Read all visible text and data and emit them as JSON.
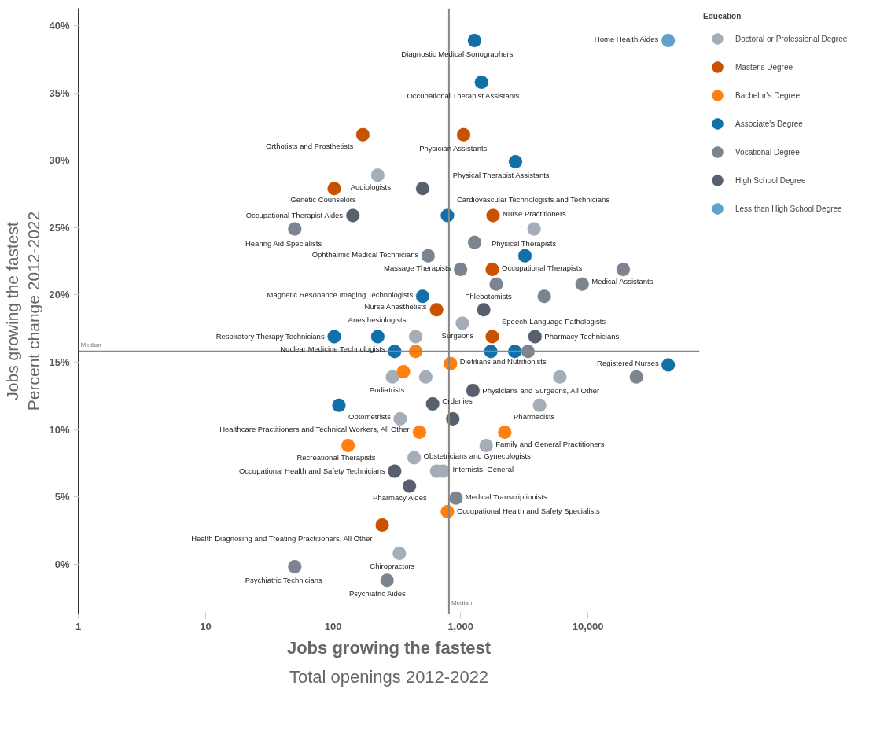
{
  "chart_data": {
    "type": "scatter",
    "xlabel": "Jobs growing the fastest\nTotal openings 2012-2022",
    "ylabel": "Jobs growing the fastest\nPercent change 2012-2022",
    "legend_title": "Education",
    "legend": "top right",
    "log": "x",
    "marker": "circle",
    "grid": false,
    "xlim": [
      1,
      75000
    ],
    "ylim": [
      -3.7,
      41.3
    ],
    "xticks": [
      1,
      10,
      100,
      {
        "value": 1000,
        "label": "1,000"
      },
      {
        "value": 10000,
        "label": "10,000"
      }
    ],
    "yticks": [
      {
        "value": 0,
        "label": "0%"
      },
      {
        "value": 5,
        "label": "5%"
      },
      {
        "value": 10,
        "label": "10%"
      },
      {
        "value": 15,
        "label": "15%"
      },
      {
        "value": 20,
        "label": "20%"
      },
      {
        "value": 25,
        "label": "25%"
      },
      {
        "value": 30,
        "label": "30%"
      },
      {
        "value": 35,
        "label": "35%"
      },
      {
        "value": 40,
        "label": "40%"
      }
    ],
    "ref_lines": [
      {
        "axis": "y",
        "value": 15.8,
        "label": "Median",
        "color": "#888888"
      },
      {
        "axis": "x",
        "value": 811,
        "label": "Median",
        "color": "#888888"
      }
    ],
    "series": [
      {
        "name": "Doctoral or Professional Degree",
        "color": "#a5adb8",
        "x": [
          224,
          3776,
          444,
          1033,
          292,
          533,
          6010,
          4170,
          336,
          1588,
          432,
          650,
          730,
          331
        ],
        "values": [
          28.9,
          24.9,
          16.9,
          17.9,
          13.9,
          13.9,
          13.9,
          11.8,
          10.8,
          8.8,
          7.9,
          6.9,
          6.9,
          0.8
        ]
      },
      {
        "name": "Master's Degree",
        "color": "#c85200",
        "x": [
          171,
          1057,
          102,
          1800,
          1774,
          648,
          1774,
          243
        ],
        "values": [
          31.9,
          31.9,
          27.9,
          25.9,
          21.9,
          18.9,
          16.9,
          2.9
        ]
      },
      {
        "name": "Bachelor's Degree",
        "color": "#ff800e",
        "x": [
          444,
          834,
          356,
          476,
          131,
          2222,
          789
        ],
        "values": [
          15.8,
          14.9,
          14.3,
          9.8,
          8.8,
          9.8,
          3.9
        ]
      },
      {
        "name": "Associate's Degree",
        "color": "#1170aa",
        "x": [
          1286,
          1459,
          2698,
          789,
          3200,
          504,
          102,
          224,
          304,
          1727,
          2666,
          42600,
          111
        ],
        "values": [
          38.9,
          35.8,
          29.9,
          25.9,
          22.9,
          19.9,
          16.9,
          16.9,
          15.8,
          15.8,
          15.8,
          14.8,
          11.8
        ]
      },
      {
        "name": "Vocational Degree",
        "color": "#7b848f",
        "x": [
          50,
          556,
          1000,
          1289,
          1905,
          4540,
          9000,
          18900,
          3380,
          24000,
          920,
          50,
          265
        ],
        "values": [
          24.9,
          22.9,
          21.9,
          23.9,
          20.8,
          19.9,
          20.8,
          21.9,
          15.8,
          13.9,
          4.9,
          -0.2,
          -1.2
        ]
      },
      {
        "name": "High School Degree",
        "color": "#57606c",
        "x": [
          504,
          143,
          3840,
          1520,
          1250,
          604,
          869,
          304,
          397
        ],
        "values": [
          27.9,
          25.9,
          16.9,
          18.9,
          12.9,
          11.9,
          10.8,
          6.9,
          5.8
        ]
      },
      {
        "name": "Less than High School Degree",
        "color": "#5fa2ce",
        "x": [
          42600
        ],
        "values": [
          38.9
        ]
      }
    ],
    "annotations": [
      {
        "text": "Diagnostic Medical Sonographers",
        "x": 1286,
        "y": 38.9
      },
      {
        "text": "Home Health Aides",
        "x": 42600,
        "y": 38.9
      },
      {
        "text": "Occupational Therapist Assistants",
        "x": 1459,
        "y": 35.8
      },
      {
        "text": "Orthotists and Prosthetists",
        "x": 171,
        "y": 31.9
      },
      {
        "text": "Physician Assistants",
        "x": 1057,
        "y": 31.9
      },
      {
        "text": "Physical Therapist Assistants",
        "x": 2698,
        "y": 29.9
      },
      {
        "text": "Audiologists",
        "x": 224,
        "y": 28.9
      },
      {
        "text": "Genetic Counselors",
        "x": 102,
        "y": 27.9
      },
      {
        "text": "Cardiovascular Technologists and Technicians",
        "x": 789,
        "y": 25.9
      },
      {
        "text": "Occupational Therapist Aides",
        "x": 143,
        "y": 25.9
      },
      {
        "text": "Nurse Practitioners",
        "x": 1800,
        "y": 25.9
      },
      {
        "text": "Hearing Aid Specialists",
        "x": 50,
        "y": 24.9
      },
      {
        "text": "Physical Therapists",
        "x": 3776,
        "y": 24.9
      },
      {
        "text": "Ophthalmic Medical Technicians",
        "x": 556,
        "y": 22.9
      },
      {
        "text": "Massage Therapists",
        "x": 1000,
        "y": 21.9
      },
      {
        "text": "Occupational Therapists",
        "x": 1774,
        "y": 21.9
      },
      {
        "text": "Medical Assistants",
        "x": 9000,
        "y": 20.8
      },
      {
        "text": "Phlebotomists",
        "x": 1905,
        "y": 20.8
      },
      {
        "text": "Magnetic Resonance Imaging Technologists",
        "x": 504,
        "y": 19.9
      },
      {
        "text": "Nurse Anesthetists",
        "x": 648,
        "y": 18.9
      },
      {
        "text": "Anesthesiologists",
        "x": 444,
        "y": 16.9
      },
      {
        "text": "Speech-Language Pathologists",
        "x": 1774,
        "y": 16.9
      },
      {
        "text": "Surgeons",
        "x": 1033,
        "y": 17.9
      },
      {
        "text": "Respiratory Therapy Technicians",
        "x": 102,
        "y": 16.9
      },
      {
        "text": "Pharmacy Technicians",
        "x": 3840,
        "y": 16.9
      },
      {
        "text": "Nuclear Medicine Technologists",
        "x": 304,
        "y": 15.8
      },
      {
        "text": "Dietitians and Nutritionists",
        "x": 834,
        "y": 14.9
      },
      {
        "text": "Registered Nurses",
        "x": 42600,
        "y": 14.8
      },
      {
        "text": "Podiatrists",
        "x": 292,
        "y": 13.9
      },
      {
        "text": "Physicians and Surgeons, All Other",
        "x": 1250,
        "y": 12.9
      },
      {
        "text": "Orderlies",
        "x": 604,
        "y": 11.9
      },
      {
        "text": "Optometrists",
        "x": 336,
        "y": 10.8
      },
      {
        "text": "Pharmacists",
        "x": 4170,
        "y": 11.8
      },
      {
        "text": "Healthcare Practitioners and Technical Workers, All Other",
        "x": 476,
        "y": 9.8
      },
      {
        "text": "Family and General Practitioners",
        "x": 1588,
        "y": 8.8
      },
      {
        "text": "Recreational Therapists",
        "x": 131,
        "y": 8.8
      },
      {
        "text": "Obstetricians and Gynecologists",
        "x": 432,
        "y": 7.9
      },
      {
        "text": "Occupational Health and Safety Technicians",
        "x": 304,
        "y": 6.9
      },
      {
        "text": "Internists, General",
        "x": 730,
        "y": 6.9
      },
      {
        "text": "Pharmacy Aides",
        "x": 397,
        "y": 5.8
      },
      {
        "text": "Medical Transcriptionists",
        "x": 920,
        "y": 4.9
      },
      {
        "text": "Occupational Health and Safety Specialists",
        "x": 789,
        "y": 3.9
      },
      {
        "text": "Health Diagnosing and Treating Practitioners, All Other",
        "x": 243,
        "y": 2.9
      },
      {
        "text": "Chiropractors",
        "x": 331,
        "y": 0.8
      },
      {
        "text": "Psychiatric Technicians",
        "x": 50,
        "y": -0.2
      },
      {
        "text": "Psychiatric Aides",
        "x": 265,
        "y": -1.2
      }
    ]
  }
}
